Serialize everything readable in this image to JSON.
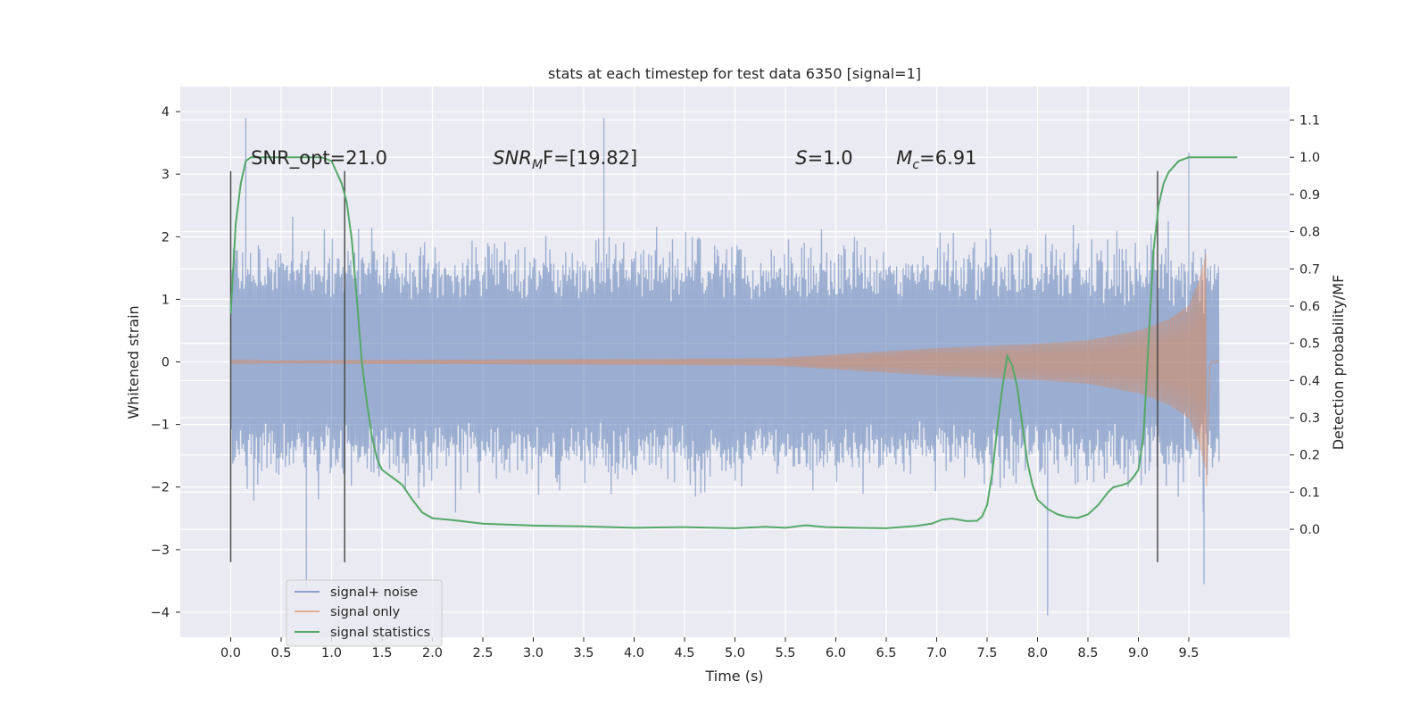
{
  "chart_data": {
    "type": "line",
    "title": "stats at each timestep for test data 6350 [signal=1]",
    "xlabel": "Time (s)",
    "ylabel": "Whitened strain",
    "ylabel_right": "Detection probability/MF",
    "xlim": [
      -0.5,
      10.5
    ],
    "ylim": [
      -4.4,
      4.4
    ],
    "ylim_right": [
      -0.29,
      1.19
    ],
    "x_ticks": [
      "0.0",
      "0.5",
      "1.0",
      "1.5",
      "2.0",
      "2.5",
      "3.0",
      "3.5",
      "4.0",
      "4.5",
      "5.0",
      "5.5",
      "6.0",
      "6.5",
      "7.0",
      "7.5",
      "8.0",
      "8.5",
      "9.0",
      "9.5"
    ],
    "y_ticks": [
      "4",
      "3",
      "2",
      "1",
      "0",
      "−1",
      "−2",
      "−3",
      "−4"
    ],
    "y_ticks_right": [
      "1.1",
      "1.0",
      "0.9",
      "0.8",
      "0.7",
      "0.6",
      "0.5",
      "0.4",
      "0.3",
      "0.2",
      "0.1",
      "0.0"
    ],
    "grid": true,
    "legend_placement": "lower-left",
    "legend": [
      "signal+ noise",
      "signal only",
      "signal statistics"
    ],
    "colors": {
      "noise": "#4c72b0",
      "signal": "#dd8452",
      "stats": "#55a868",
      "background": "#eaeaf2",
      "grid": "#ffffff",
      "marker": "#444444"
    },
    "annotations": [
      {
        "id": "snr_opt",
        "plain": "SNR_opt=21.0",
        "x_data": 0.2
      },
      {
        "id": "snr_mf",
        "base": "SNR",
        "sub": "M",
        "tail": "F=[19.82]",
        "x_data": 2.6
      },
      {
        "id": "s",
        "base": "S",
        "tail": "=1.0",
        "x_data": 5.6
      },
      {
        "id": "mc",
        "base": "M",
        "sub": "c",
        "tail": "=6.91",
        "x_data": 6.6
      }
    ],
    "vertical_markers_x": [
      0.0,
      1.13,
      9.19
    ],
    "series": [
      {
        "name": "signal+ noise",
        "kind": "noise",
        "x_range": [
          0.0,
          9.8
        ],
        "typical_amplitude": 1.25,
        "extremes": [
          {
            "x": 0.15,
            "y": 3.9
          },
          {
            "x": 3.7,
            "y": 3.9
          },
          {
            "x": 9.5,
            "y": 3.35
          },
          {
            "x": 0.75,
            "y": -3.6
          },
          {
            "x": 8.1,
            "y": -4.05
          },
          {
            "x": 9.65,
            "y": -3.55
          }
        ]
      },
      {
        "name": "signal only",
        "kind": "chirp",
        "x_range": [
          0.0,
          9.8
        ],
        "merger_x": 9.67,
        "envelope": [
          {
            "x": 0.0,
            "a": 0.02
          },
          {
            "x": 5.4,
            "a": 0.06
          },
          {
            "x": 6.0,
            "a": 0.12
          },
          {
            "x": 7.0,
            "a": 0.22
          },
          {
            "x": 8.0,
            "a": 0.29
          },
          {
            "x": 8.5,
            "a": 0.35
          },
          {
            "x": 9.0,
            "a": 0.5
          },
          {
            "x": 9.3,
            "a": 0.68
          },
          {
            "x": 9.5,
            "a": 0.9
          },
          {
            "x": 9.6,
            "a": 1.3
          },
          {
            "x": 9.67,
            "a": 1.75
          }
        ]
      },
      {
        "name": "signal statistics",
        "kind": "line",
        "axis": "right",
        "points": [
          [
            0.0,
            0.58
          ],
          [
            0.05,
            0.82
          ],
          [
            0.1,
            0.93
          ],
          [
            0.15,
            0.99
          ],
          [
            0.2,
            1.0
          ],
          [
            0.5,
            1.0
          ],
          [
            0.9,
            1.0
          ],
          [
            1.0,
            0.99
          ],
          [
            1.05,
            0.96
          ],
          [
            1.1,
            0.93
          ],
          [
            1.15,
            0.88
          ],
          [
            1.2,
            0.78
          ],
          [
            1.25,
            0.62
          ],
          [
            1.3,
            0.45
          ],
          [
            1.35,
            0.34
          ],
          [
            1.4,
            0.25
          ],
          [
            1.45,
            0.19
          ],
          [
            1.5,
            0.16
          ],
          [
            1.6,
            0.14
          ],
          [
            1.7,
            0.12
          ],
          [
            1.8,
            0.08
          ],
          [
            1.9,
            0.045
          ],
          [
            2.0,
            0.03
          ],
          [
            2.2,
            0.025
          ],
          [
            2.5,
            0.015
          ],
          [
            3.0,
            0.01
          ],
          [
            3.5,
            0.008
          ],
          [
            4.0,
            0.004
          ],
          [
            4.5,
            0.006
          ],
          [
            5.0,
            0.003
          ],
          [
            5.3,
            0.007
          ],
          [
            5.5,
            0.004
          ],
          [
            5.7,
            0.011
          ],
          [
            5.9,
            0.006
          ],
          [
            6.2,
            0.004
          ],
          [
            6.5,
            0.003
          ],
          [
            6.8,
            0.009
          ],
          [
            6.95,
            0.015
          ],
          [
            7.05,
            0.026
          ],
          [
            7.15,
            0.029
          ],
          [
            7.3,
            0.022
          ],
          [
            7.4,
            0.023
          ],
          [
            7.45,
            0.034
          ],
          [
            7.5,
            0.065
          ],
          [
            7.55,
            0.15
          ],
          [
            7.6,
            0.27
          ],
          [
            7.65,
            0.38
          ],
          [
            7.7,
            0.466
          ],
          [
            7.75,
            0.44
          ],
          [
            7.8,
            0.38
          ],
          [
            7.85,
            0.28
          ],
          [
            7.9,
            0.18
          ],
          [
            7.95,
            0.12
          ],
          [
            8.0,
            0.08
          ],
          [
            8.1,
            0.055
          ],
          [
            8.2,
            0.04
          ],
          [
            8.3,
            0.033
          ],
          [
            8.4,
            0.031
          ],
          [
            8.5,
            0.04
          ],
          [
            8.6,
            0.065
          ],
          [
            8.7,
            0.1
          ],
          [
            8.75,
            0.113
          ],
          [
            8.85,
            0.12
          ],
          [
            8.9,
            0.125
          ],
          [
            8.95,
            0.14
          ],
          [
            9.0,
            0.16
          ],
          [
            9.05,
            0.25
          ],
          [
            9.1,
            0.5
          ],
          [
            9.15,
            0.75
          ],
          [
            9.2,
            0.87
          ],
          [
            9.25,
            0.93
          ],
          [
            9.3,
            0.96
          ],
          [
            9.4,
            0.99
          ],
          [
            9.5,
            1.0
          ],
          [
            9.6,
            1.0
          ],
          [
            9.98,
            1.0
          ]
        ]
      }
    ]
  }
}
